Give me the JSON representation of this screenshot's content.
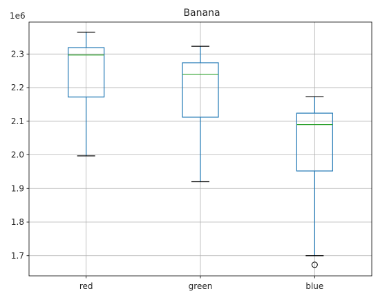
{
  "chart_data": {
    "type": "box",
    "title": "Banana",
    "offset_text": "1e6",
    "categories": [
      "red",
      "green",
      "blue"
    ],
    "ylim": [
      1.64,
      2.395
    ],
    "ytick_values": [
      1.7,
      1.8,
      1.9,
      2.0,
      2.1,
      2.2,
      2.3
    ],
    "ytick_labels": [
      "1.7",
      "1.8",
      "1.9",
      "2.0",
      "2.1",
      "2.2",
      "2.3"
    ],
    "grid": true,
    "boxes": [
      {
        "category": "red",
        "whisker_low": 1.997,
        "q1": 2.172,
        "median": 2.297,
        "q3": 2.319,
        "whisker_high": 2.365,
        "outliers": []
      },
      {
        "category": "green",
        "whisker_low": 1.92,
        "q1": 2.112,
        "median": 2.24,
        "q3": 2.274,
        "whisker_high": 2.323,
        "outliers": []
      },
      {
        "category": "blue",
        "whisker_low": 1.7,
        "q1": 1.952,
        "median": 2.09,
        "q3": 2.124,
        "whisker_high": 2.173,
        "outliers": [
          1.673
        ]
      }
    ],
    "colors": {
      "box": "#1f77b4",
      "median": "#2ca02c",
      "whisker_cap": "#000000",
      "grid": "#b0b0b0"
    }
  }
}
